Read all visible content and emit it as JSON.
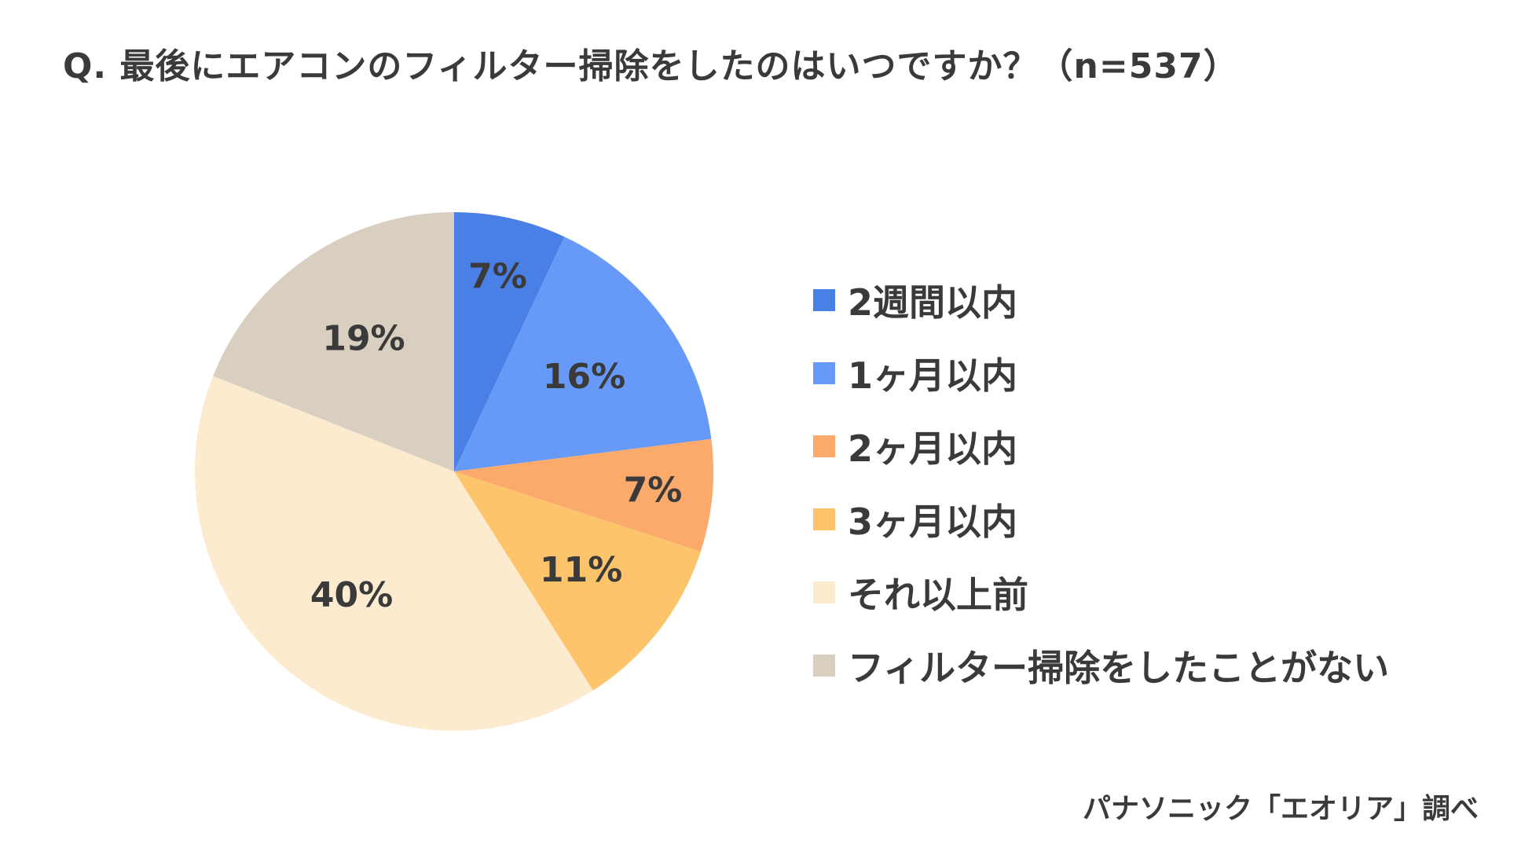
{
  "title": "Q. 最後にエアコンのフィルター掃除をしたのはいつですか？（n=537）",
  "source": "パナソニック「エオリア」調べ",
  "chart_data": {
    "type": "pie",
    "title": "Q. 最後にエアコンのフィルター掃除をしたのはいつですか？（n=537）",
    "n": 537,
    "slices": [
      {
        "label": "2週間以内",
        "value": 7,
        "display": "7%",
        "color": "#4a7fe6"
      },
      {
        "label": "1ヶ月以内",
        "value": 16,
        "display": "16%",
        "color": "#6699f8"
      },
      {
        "label": "2ヶ月以内",
        "value": 7,
        "display": "7%",
        "color": "#fca96c"
      },
      {
        "label": "3ヶ月以内",
        "value": 11,
        "display": "11%",
        "color": "#fdc46c"
      },
      {
        "label": "それ以上前",
        "value": 40,
        "display": "40%",
        "color": "#fcebcf"
      },
      {
        "label": "フィルター掃除をしたことがない",
        "value": 19,
        "display": "19%",
        "color": "#d8cfc1"
      }
    ],
    "legend_position": "right",
    "start_angle_deg": 0,
    "direction": "clockwise"
  }
}
